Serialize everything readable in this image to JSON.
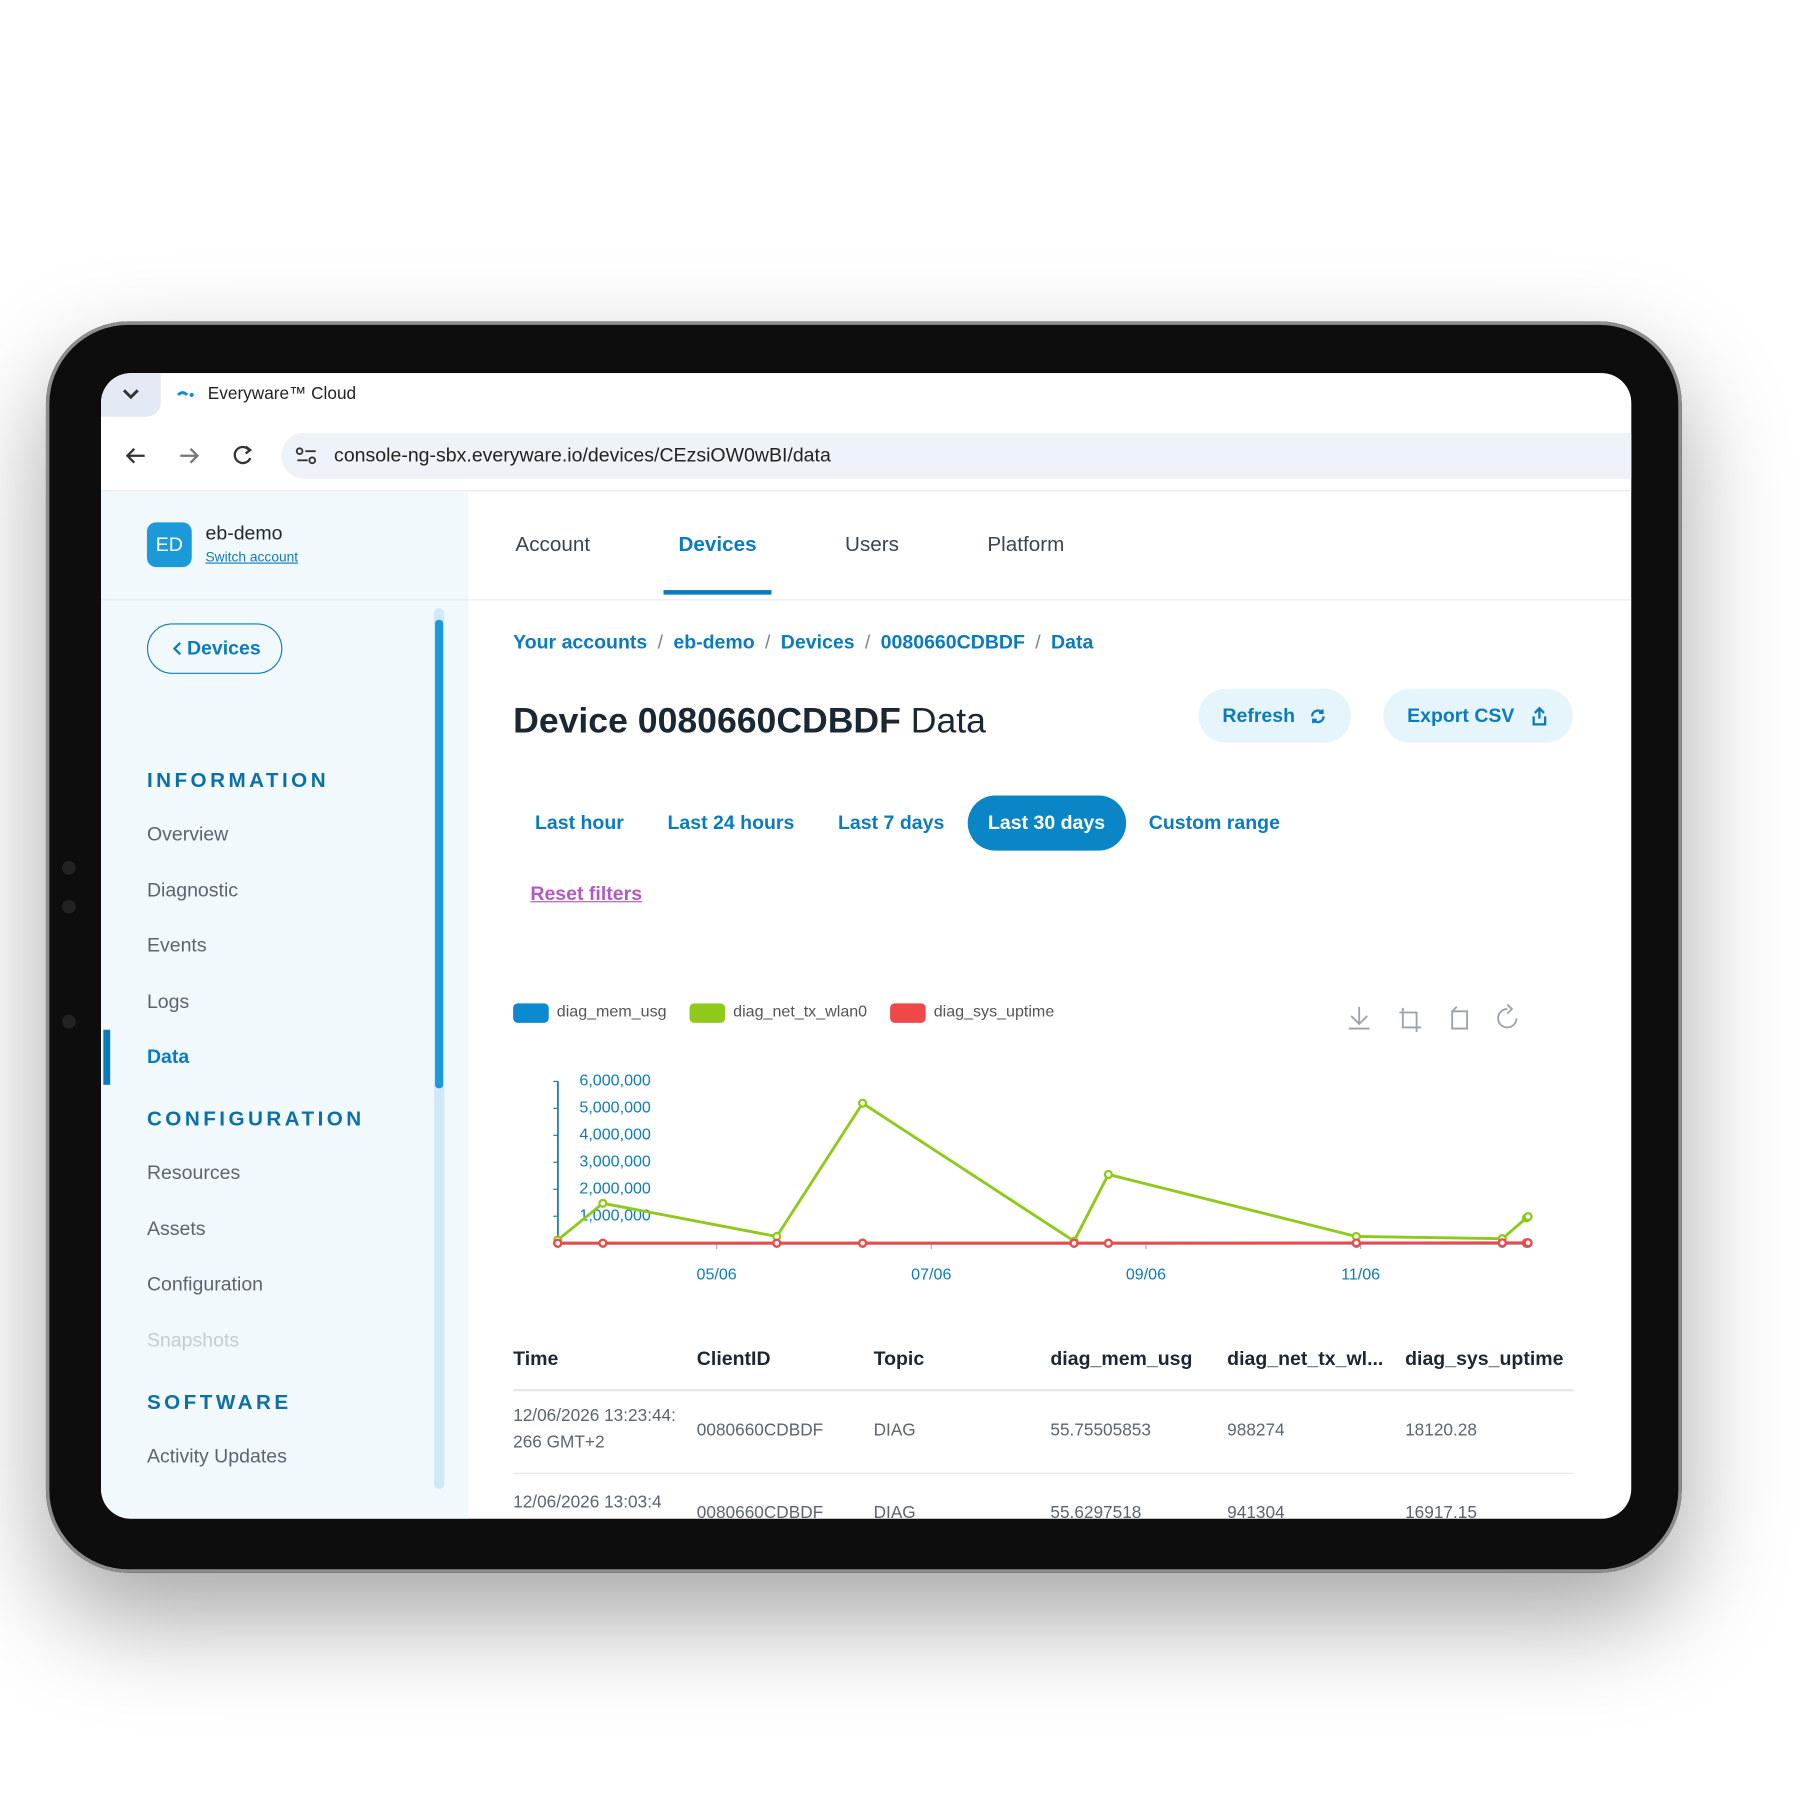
{
  "browser": {
    "tab_title": "Everyware™ Cloud",
    "url": "console-ng-sbx.everyware.io/devices/CEzsiOW0wBI/data"
  },
  "account": {
    "initials": "ED",
    "name": "eb-demo",
    "switch": "Switch account"
  },
  "sidebar": {
    "back": "Devices",
    "sections": [
      {
        "title": "INFORMATION",
        "items": [
          "Overview",
          "Diagnostic",
          "Events",
          "Logs",
          "Data"
        ]
      },
      {
        "title": "CONFIGURATION",
        "items": [
          "Resources",
          "Assets",
          "Configuration",
          "Snapshots"
        ]
      },
      {
        "title": "SOFTWARE",
        "items": [
          "Activity Updates"
        ]
      }
    ],
    "active_item": [
      0,
      4
    ],
    "disabled_item": [
      1,
      3
    ]
  },
  "nav": {
    "tabs": [
      "Account",
      "Devices",
      "Users",
      "Platform"
    ],
    "active": 1
  },
  "breadcrumbs": [
    "Your accounts",
    "eb-demo",
    "Devices",
    "0080660CDBDF",
    "Data"
  ],
  "header": {
    "title_id": "Device 0080660CDBDF",
    "title_suffix": "Data",
    "refresh": "Refresh",
    "export": "Export CSV"
  },
  "filters": {
    "options": [
      "Last hour",
      "Last 24 hours",
      "Last 7 days",
      "Last 30 days",
      "Custom range"
    ],
    "active": 3,
    "reset": "Reset filters"
  },
  "chart_data": {
    "type": "line",
    "x": [
      3.52,
      3.94,
      5.56,
      6.36,
      8.33,
      8.65,
      10.96,
      12.32,
      12.545,
      12.56
    ],
    "series": [
      {
        "name": "diag_mem_usg",
        "color": "#0b8ad0",
        "values": [
          54.2,
          55.1,
          53.8,
          56.3,
          54.9,
          55.4,
          55.0,
          55.2,
          55.6297518,
          55.75505853
        ]
      },
      {
        "name": "diag_net_tx_wlan0",
        "color": "#8fc91a",
        "values": [
          120000,
          1480000,
          250000,
          5190000,
          80000,
          2550000,
          250000,
          170000,
          941304,
          988274
        ]
      },
      {
        "name": "diag_sys_uptime",
        "color": "#f04848",
        "values": [
          1200,
          2600,
          900,
          3800,
          700,
          1800,
          9500,
          15700,
          16917.15,
          18120.28
        ]
      }
    ],
    "xlim": [
      3.5,
      12.58
    ],
    "xticks": [
      {
        "value": 5,
        "label": "05/06"
      },
      {
        "value": 7,
        "label": "07/06"
      },
      {
        "value": 9,
        "label": "09/06"
      },
      {
        "value": 11,
        "label": "11/06"
      }
    ],
    "ylim": [
      0,
      6000000
    ],
    "yticks": [
      {
        "value": 1000000,
        "label": "1,000,000"
      },
      {
        "value": 2000000,
        "label": "2,000,000"
      },
      {
        "value": 3000000,
        "label": "3,000,000"
      },
      {
        "value": 4000000,
        "label": "4,000,000"
      },
      {
        "value": 5000000,
        "label": "5,000,000"
      },
      {
        "value": 6000000,
        "label": "6,000,000"
      }
    ],
    "legend": "top-left"
  },
  "table": {
    "columns": [
      "Time",
      "ClientID",
      "Topic",
      "diag_mem_usg",
      "diag_net_tx_wl...",
      "diag_sys_uptime"
    ],
    "rows": [
      [
        "12/06/2026 13:23:44:266 GMT+2",
        "0080660CDBDF",
        "DIAG",
        "55.75505853",
        "988274",
        "18120.28"
      ],
      [
        "12/06/2026 13:03:4",
        "0080660CDBDF",
        "DIAG",
        "55.6297518",
        "941304",
        "16917.15"
      ]
    ]
  }
}
